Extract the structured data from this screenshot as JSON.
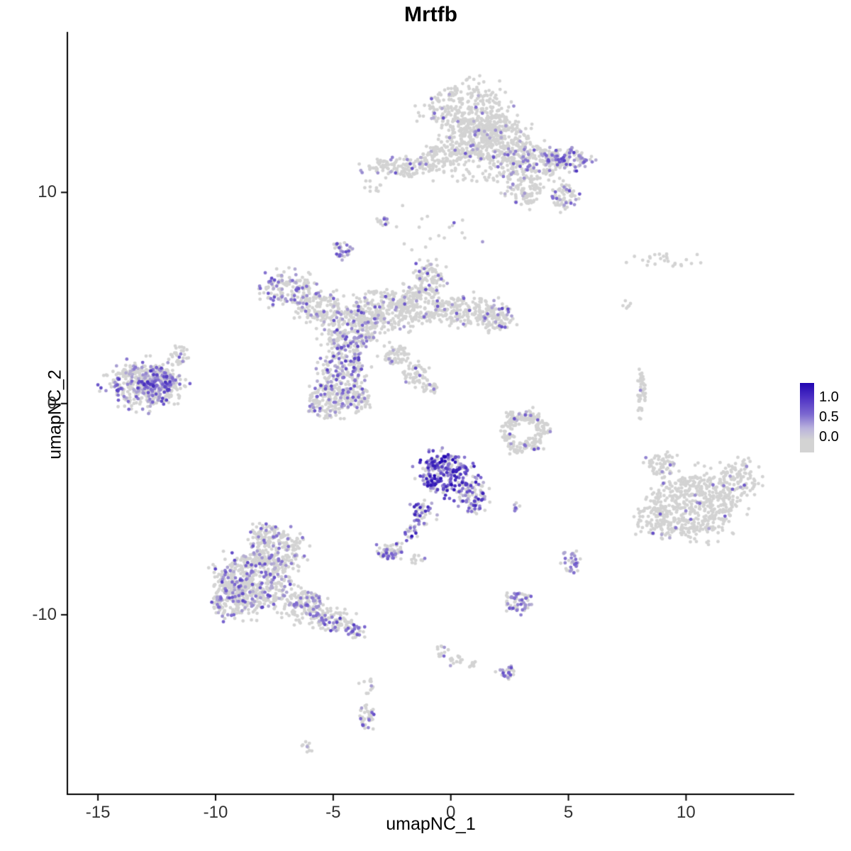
{
  "chart_data": {
    "type": "scatter",
    "title": "Mrtfb",
    "xlabel": "umapNC_1",
    "ylabel": "umapNC_2",
    "xlim": [
      -16.3,
      14.6
    ],
    "ylim": [
      -18.5,
      17.6
    ],
    "x_ticks": {
      "values": [
        -15,
        -10,
        -5,
        0,
        5,
        10
      ],
      "labels": [
        "-15",
        "-10",
        "-5",
        "0",
        "5",
        "10"
      ]
    },
    "y_ticks": {
      "values": [
        -10,
        0,
        10
      ],
      "labels": [
        "-10",
        "0",
        "10"
      ]
    },
    "colors": {
      "low": "#D3D3D3",
      "mid": "#7C68D0",
      "high": "#2106B1",
      "axis": "#000000"
    },
    "legend": {
      "labels": [
        "1.0",
        "0.5",
        "0.0"
      ],
      "value_range": [
        0.0,
        1.35
      ]
    },
    "expression_scale": {
      "min": 0.0,
      "max": 1.35
    },
    "clusters": [
      {
        "cx": 0.7,
        "cy": 13.9,
        "rx": 1.6,
        "ry": 1.2,
        "n": 320,
        "f": 0.05
      },
      {
        "cx": 2.1,
        "cy": 12.4,
        "rx": 1.3,
        "ry": 1.0,
        "n": 240,
        "f": 0.06
      },
      {
        "cx": 1.0,
        "cy": 12.6,
        "rx": 1.2,
        "ry": 1.0,
        "n": 180,
        "f": 0.04
      },
      {
        "cx": 3.4,
        "cy": 11.4,
        "rx": 1.3,
        "ry": 0.8,
        "n": 200,
        "f": 0.12
      },
      {
        "cx": 4.9,
        "cy": 11.6,
        "rx": 0.9,
        "ry": 0.45,
        "n": 130,
        "f": 0.35,
        "vmax": 1.0
      },
      {
        "cx": 3.1,
        "cy": 10.1,
        "rx": 0.7,
        "ry": 0.7,
        "n": 90,
        "f": 0.1
      },
      {
        "cx": 4.8,
        "cy": 9.8,
        "rx": 0.5,
        "ry": 0.6,
        "n": 70,
        "f": 0.2
      },
      {
        "cx": -2.1,
        "cy": 11.2,
        "rx": 1.4,
        "ry": 0.4,
        "n": 130,
        "f": 0.08
      },
      {
        "cx": -0.4,
        "cy": 11.7,
        "rx": 0.8,
        "ry": 0.55,
        "n": 90,
        "f": 0.05
      },
      {
        "cx": 1.2,
        "cy": 11.2,
        "rx": 1.6,
        "ry": 0.9,
        "n": 70,
        "f": 0.05
      },
      {
        "cx": -2.9,
        "cy": 8.6,
        "rx": 0.3,
        "ry": 0.25,
        "n": 14,
        "f": 0.1
      },
      {
        "cx": -4.6,
        "cy": 7.3,
        "rx": 0.35,
        "ry": 0.4,
        "n": 30,
        "f": 0.55,
        "vmax": 0.9
      },
      {
        "cx": -1.0,
        "cy": 8.2,
        "rx": 1.8,
        "ry": 0.9,
        "n": 18,
        "f": 0.05
      },
      {
        "cx": -6.9,
        "cy": 5.4,
        "rx": 1.0,
        "ry": 0.75,
        "n": 160,
        "f": 0.3,
        "vmax": 0.9
      },
      {
        "cx": -5.6,
        "cy": 4.6,
        "rx": 0.9,
        "ry": 0.65,
        "n": 130,
        "f": 0.12
      },
      {
        "cx": -4.3,
        "cy": 3.5,
        "rx": 1.1,
        "ry": 0.95,
        "n": 230,
        "f": 0.22,
        "vmax": 1.0
      },
      {
        "cx": -3.0,
        "cy": 4.4,
        "rx": 1.2,
        "ry": 1.0,
        "n": 260,
        "f": 0.08
      },
      {
        "cx": -1.3,
        "cy": 4.7,
        "rx": 1.0,
        "ry": 0.85,
        "n": 190,
        "f": 0.05
      },
      {
        "cx": -0.9,
        "cy": 6.0,
        "rx": 0.55,
        "ry": 0.7,
        "n": 90,
        "f": 0.1
      },
      {
        "cx": 0.7,
        "cy": 4.4,
        "rx": 1.2,
        "ry": 0.65,
        "n": 170,
        "f": 0.05
      },
      {
        "cx": 2.0,
        "cy": 4.1,
        "rx": 0.65,
        "ry": 0.6,
        "n": 90,
        "f": 0.18,
        "vmax": 0.9
      },
      {
        "cx": -4.6,
        "cy": 1.7,
        "rx": 0.85,
        "ry": 1.1,
        "n": 210,
        "f": 0.33,
        "vmax": 1.0
      },
      {
        "cx": -5.3,
        "cy": 0.1,
        "rx": 0.75,
        "ry": 0.8,
        "n": 150,
        "f": 0.15
      },
      {
        "cx": -4.0,
        "cy": 0.3,
        "rx": 0.55,
        "ry": 0.55,
        "n": 90,
        "f": 0.2
      },
      {
        "cx": -2.3,
        "cy": 2.3,
        "rx": 0.6,
        "ry": 0.45,
        "n": 60,
        "f": 0.1
      },
      {
        "cx": -1.5,
        "cy": 1.4,
        "rx": 0.5,
        "ry": 0.45,
        "n": 50,
        "f": 0.08
      },
      {
        "cx": -0.9,
        "cy": 0.8,
        "rx": 0.35,
        "ry": 0.3,
        "n": 25,
        "f": 0.05
      },
      {
        "cx": -13.0,
        "cy": 0.9,
        "rx": 1.4,
        "ry": 0.95,
        "n": 420,
        "f": 0.3,
        "vmax": 0.95
      },
      {
        "cx": -12.5,
        "cy": 1.1,
        "rx": 0.7,
        "ry": 0.5,
        "n": 140,
        "f": 0.55,
        "vmax": 1.1
      },
      {
        "cx": -11.5,
        "cy": 2.3,
        "rx": 0.4,
        "ry": 0.4,
        "n": 30,
        "f": 0.25
      },
      {
        "cx": 2.7,
        "cy": -0.7,
        "rx": 0.35,
        "ry": 0.35,
        "n": 45,
        "f": 0.06
      },
      {
        "cx": 3.4,
        "cy": -0.6,
        "rx": 0.4,
        "ry": 0.3,
        "n": 45,
        "f": 0.08,
        "vmax": 0.8
      },
      {
        "cx": 3.9,
        "cy": -1.2,
        "rx": 0.3,
        "ry": 0.4,
        "n": 40,
        "f": 0.04
      },
      {
        "cx": 3.5,
        "cy": -1.9,
        "rx": 0.4,
        "ry": 0.3,
        "n": 40,
        "f": 0.04
      },
      {
        "cx": 2.8,
        "cy": -2.1,
        "rx": 0.4,
        "ry": 0.3,
        "n": 35,
        "f": 0.04
      },
      {
        "cx": 2.4,
        "cy": -1.4,
        "rx": 0.3,
        "ry": 0.4,
        "n": 30,
        "f": 0.04
      },
      {
        "cx": -0.3,
        "cy": -3.3,
        "rx": 1.0,
        "ry": 0.85,
        "n": 270,
        "f": 0.7,
        "vmin": 0.35,
        "vmax": 1.35
      },
      {
        "cx": 0.9,
        "cy": -4.4,
        "rx": 0.55,
        "ry": 0.75,
        "n": 100,
        "f": 0.5,
        "vmax": 1.2
      },
      {
        "cx": -1.2,
        "cy": -5.2,
        "rx": 0.45,
        "ry": 0.55,
        "n": 55,
        "f": 0.45,
        "vmax": 1.2
      },
      {
        "cx": -1.7,
        "cy": -6.2,
        "rx": 0.25,
        "ry": 0.35,
        "n": 16,
        "f": 0.6,
        "vmax": 1.3
      },
      {
        "cx": 2.8,
        "cy": -4.9,
        "rx": 0.2,
        "ry": 0.2,
        "n": 8,
        "f": 0.7,
        "vmax": 1.0
      },
      {
        "cx": -2.6,
        "cy": -7.0,
        "rx": 0.55,
        "ry": 0.35,
        "n": 55,
        "f": 0.5,
        "vmax": 1.0
      },
      {
        "cx": -1.4,
        "cy": -7.3,
        "rx": 0.3,
        "ry": 0.2,
        "n": 12,
        "f": 0.2
      },
      {
        "cx": -8.3,
        "cy": -8.4,
        "rx": 1.5,
        "ry": 1.3,
        "n": 520,
        "f": 0.22,
        "vmax": 0.95
      },
      {
        "cx": -7.3,
        "cy": -6.9,
        "rx": 1.0,
        "ry": 0.8,
        "n": 180,
        "f": 0.2
      },
      {
        "cx": -9.4,
        "cy": -9.3,
        "rx": 0.8,
        "ry": 0.8,
        "n": 140,
        "f": 0.25
      },
      {
        "cx": -6.2,
        "cy": -9.6,
        "rx": 0.9,
        "ry": 0.7,
        "n": 150,
        "f": 0.22
      },
      {
        "cx": -5.0,
        "cy": -10.3,
        "rx": 0.8,
        "ry": 0.5,
        "n": 90,
        "f": 0.3,
        "vmax": 1.0
      },
      {
        "cx": -7.9,
        "cy": -6.1,
        "rx": 0.6,
        "ry": 0.4,
        "n": 50,
        "f": 0.15
      },
      {
        "cx": -4.1,
        "cy": -10.8,
        "rx": 0.4,
        "ry": 0.3,
        "n": 30,
        "f": 0.35
      },
      {
        "cx": 10.3,
        "cy": -4.8,
        "rx": 1.7,
        "ry": 1.4,
        "n": 520,
        "f": 0.035,
        "vmax": 1.1
      },
      {
        "cx": 12.2,
        "cy": -3.7,
        "rx": 0.8,
        "ry": 0.9,
        "n": 120,
        "f": 0.04
      },
      {
        "cx": 8.6,
        "cy": -5.6,
        "rx": 0.7,
        "ry": 0.8,
        "n": 70,
        "f": 0.03
      },
      {
        "cx": 9.0,
        "cy": -2.9,
        "rx": 0.6,
        "ry": 0.5,
        "n": 60,
        "f": 0.05
      },
      {
        "cx": 8.1,
        "cy": 0.6,
        "rx": 0.18,
        "ry": 0.95,
        "n": 45,
        "f": 0.02
      },
      {
        "cx": 2.9,
        "cy": -9.4,
        "rx": 0.55,
        "ry": 0.45,
        "n": 65,
        "f": 0.45,
        "vmax": 0.9
      },
      {
        "cx": 5.1,
        "cy": -7.5,
        "rx": 0.3,
        "ry": 0.45,
        "n": 35,
        "f": 0.55,
        "vmax": 0.9
      },
      {
        "cx": -0.4,
        "cy": -11.7,
        "rx": 0.25,
        "ry": 0.3,
        "n": 12,
        "f": 0.1
      },
      {
        "cx": 0.2,
        "cy": -12.1,
        "rx": 0.3,
        "ry": 0.25,
        "n": 14,
        "f": 0.15
      },
      {
        "cx": 1.0,
        "cy": -12.4,
        "rx": 0.25,
        "ry": 0.2,
        "n": 8,
        "f": 0.1
      },
      {
        "cx": 2.4,
        "cy": -12.7,
        "rx": 0.35,
        "ry": 0.3,
        "n": 26,
        "f": 0.5,
        "vmax": 0.9
      },
      {
        "cx": -3.5,
        "cy": -13.3,
        "rx": 0.3,
        "ry": 0.3,
        "n": 12,
        "f": 0.1
      },
      {
        "cx": -3.6,
        "cy": -14.8,
        "rx": 0.3,
        "ry": 0.6,
        "n": 40,
        "f": 0.3,
        "vmax": 0.9
      },
      {
        "cx": -6.1,
        "cy": -16.3,
        "rx": 0.3,
        "ry": 0.2,
        "n": 10,
        "f": 0.05
      },
      {
        "cx": 9.4,
        "cy": 6.8,
        "rx": 1.4,
        "ry": 0.3,
        "n": 26,
        "f": 0.0
      },
      {
        "cx": 7.4,
        "cy": 4.7,
        "rx": 0.3,
        "ry": 0.2,
        "n": 6,
        "f": 0.0
      },
      {
        "cx": -3.3,
        "cy": 10.3,
        "rx": 0.4,
        "ry": 0.3,
        "n": 10,
        "f": 0.1
      }
    ]
  }
}
